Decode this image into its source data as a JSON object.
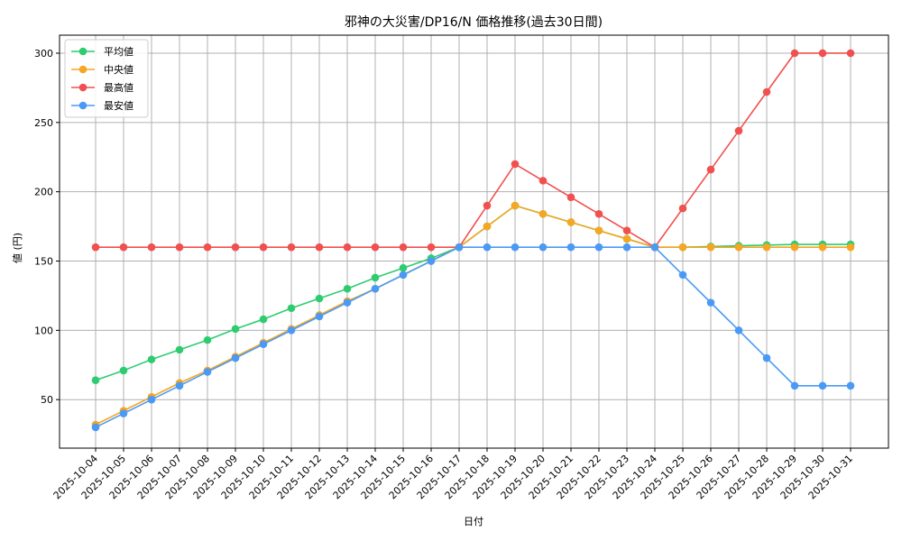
{
  "chart_data": {
    "type": "line",
    "title": "邪神の大災害/DP16/N 価格推移(過去30日間)",
    "xlabel": "日付",
    "ylabel": "値 (円)",
    "ylim": [
      15,
      313
    ],
    "yticks": [
      50,
      100,
      150,
      200,
      250,
      300
    ],
    "grid": true,
    "legend_position": "top-left",
    "x": [
      "2025-10-04",
      "2025-10-05",
      "2025-10-06",
      "2025-10-07",
      "2025-10-08",
      "2025-10-09",
      "2025-10-10",
      "2025-10-11",
      "2025-10-12",
      "2025-10-13",
      "2025-10-14",
      "2025-10-15",
      "2025-10-16",
      "2025-10-17",
      "2025-10-18",
      "2025-10-19",
      "2025-10-20",
      "2025-10-21",
      "2025-10-22",
      "2025-10-23",
      "2025-10-24",
      "2025-10-25",
      "2025-10-26",
      "2025-10-27",
      "2025-10-28",
      "2025-10-29",
      "2025-10-30",
      "2025-10-31"
    ],
    "series": [
      {
        "name": "平均値",
        "color": "#2ecc71",
        "values": [
          64,
          71,
          79,
          86,
          93,
          101,
          108,
          116,
          123,
          130,
          138,
          145,
          152,
          160,
          175,
          190,
          184,
          178,
          172,
          166,
          160,
          160,
          160.5,
          161,
          161.5,
          162,
          162,
          162
        ]
      },
      {
        "name": "中央値",
        "color": "#f5a623",
        "values": [
          32,
          42,
          52,
          62,
          71,
          81,
          91,
          101,
          111,
          121,
          130,
          140,
          150,
          160,
          175,
          190,
          184,
          178,
          172,
          166,
          160,
          160,
          160,
          160,
          160,
          160,
          160,
          160
        ]
      },
      {
        "name": "最高値",
        "color": "#f0504f",
        "values": [
          160,
          160,
          160,
          160,
          160,
          160,
          160,
          160,
          160,
          160,
          160,
          160,
          160,
          160,
          190,
          220,
          208,
          196,
          184,
          172,
          160,
          188,
          216,
          244,
          272,
          300,
          300,
          300
        ]
      },
      {
        "name": "最安値",
        "color": "#4a9af5",
        "values": [
          30,
          40,
          50,
          60,
          70,
          80,
          90,
          100,
          110,
          120,
          130,
          140,
          150,
          160,
          160,
          160,
          160,
          160,
          160,
          160,
          160,
          140,
          120,
          100,
          80,
          60,
          60,
          60
        ]
      }
    ]
  }
}
